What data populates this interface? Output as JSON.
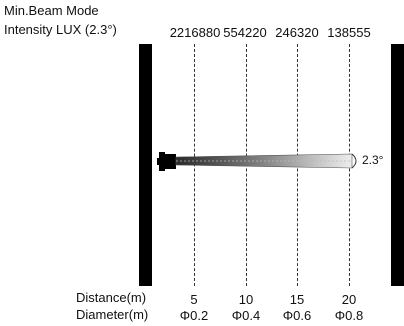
{
  "header": {
    "title": "Min.Beam Mode",
    "subtitle": "Intensity LUX (2.3°)"
  },
  "intensity_values": [
    "2216880",
    "554220",
    "246320",
    "138555"
  ],
  "beam_angle_label": "2.3°",
  "axis": {
    "distance_label": "Distance(m)",
    "diameter_label": "Diameter(m)",
    "distances": [
      "5",
      "10",
      "15",
      "20"
    ],
    "diameters": [
      "Φ0.2",
      "Φ0.4",
      "Φ0.6",
      "Φ0.8"
    ]
  },
  "colors": {
    "frame": "#000000",
    "beam_dark": "#333333",
    "beam_light": "#e6e6e6"
  }
}
